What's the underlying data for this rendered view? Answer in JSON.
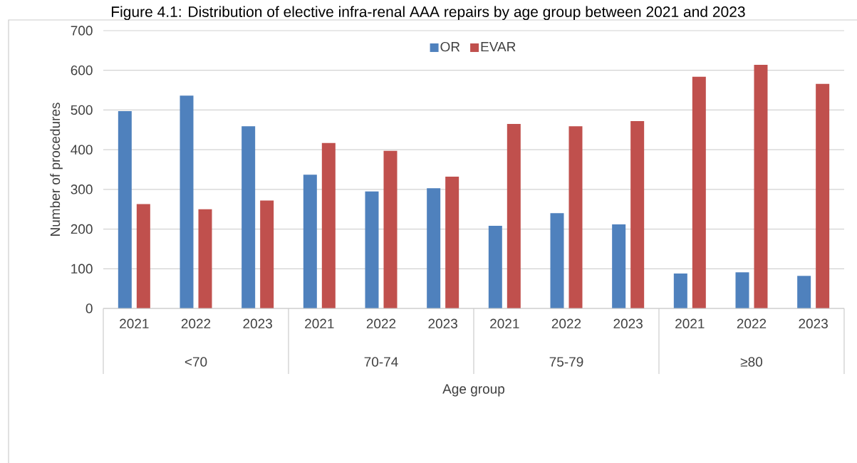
{
  "chart_data": {
    "type": "bar",
    "title": "Figure 4.1: Distribution of elective infra-renal AAA repairs by age group between 2021 and 2023",
    "xlabel": "Age group",
    "ylabel": "Number of procedures",
    "categories": [
      "2021",
      "2022",
      "2023",
      "2021",
      "2022",
      "2023",
      "2021",
      "2022",
      "2023",
      "2021",
      "2022",
      "2023"
    ],
    "annotations": [
      "<70",
      "70-74",
      "75-79",
      "≥80"
    ],
    "series": [
      {
        "name": "OR",
        "color": "#4f81bd",
        "values": [
          497,
          536,
          459,
          337,
          295,
          303,
          208,
          240,
          212,
          88,
          91,
          82
        ]
      },
      {
        "name": "EVAR",
        "color": "#c0504d",
        "values": [
          263,
          250,
          272,
          417,
          397,
          332,
          465,
          459,
          472,
          584,
          614,
          566
        ]
      }
    ],
    "ylim": [
      0,
      700
    ],
    "yticks": [
      0,
      100,
      200,
      300,
      400,
      500,
      600,
      700
    ],
    "grid": "y",
    "legend": "top"
  }
}
